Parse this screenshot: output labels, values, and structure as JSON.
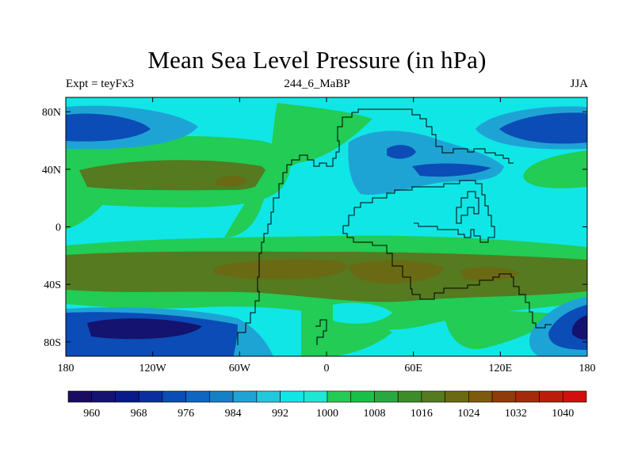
{
  "title": "Mean Sea Level Pressure (in hPa)",
  "subtitle_left": "Expt = teyFx3",
  "subtitle_center": "244_6_MaBP",
  "subtitle_right": "JJA",
  "axes": {
    "x_ticks": [
      {
        "value": -180,
        "label": "180"
      },
      {
        "value": -120,
        "label": "120W"
      },
      {
        "value": -60,
        "label": "60W"
      },
      {
        "value": 0,
        "label": "0"
      },
      {
        "value": 60,
        "label": "60E"
      },
      {
        "value": 120,
        "label": "120E"
      },
      {
        "value": 180,
        "label": "180"
      }
    ],
    "y_ticks": [
      {
        "value": 80,
        "label": "80N"
      },
      {
        "value": 40,
        "label": "40N"
      },
      {
        "value": 0,
        "label": "0"
      },
      {
        "value": -40,
        "label": "40S"
      },
      {
        "value": -80,
        "label": "80S"
      }
    ],
    "xlim": [
      -180,
      180
    ],
    "ylim": [
      -90,
      90
    ]
  },
  "colorbar": {
    "levels": [
      956,
      960,
      964,
      968,
      972,
      976,
      980,
      984,
      988,
      992,
      996,
      1000,
      1004,
      1008,
      1012,
      1016,
      1020,
      1024,
      1028,
      1032,
      1036,
      1040,
      1044
    ],
    "colors": [
      "#1a0c5e",
      "#14136f",
      "#0a1a88",
      "#0a2ea0",
      "#0b4cb6",
      "#0e66c0",
      "#1480c8",
      "#1ea4d4",
      "#22c8dc",
      "#10e6e6",
      "#1ee8d4",
      "#22cc55",
      "#18c048",
      "#2aa840",
      "#3c8c2a",
      "#557a20",
      "#6a6a14",
      "#7e5a0e",
      "#903c0a",
      "#a42a0c",
      "#bc1c0c",
      "#d40e0e"
    ],
    "labels": [
      "960",
      "968",
      "976",
      "984",
      "992",
      "1000",
      "1008",
      "1016",
      "1024",
      "1032",
      "1040"
    ]
  },
  "field_colors": {
    "deep_low": "#14136f",
    "low": "#0b4cb6",
    "mid_low": "#1ea4d4",
    "cyan": "#10e6e6",
    "green": "#22cc55",
    "olive": "#557a20",
    "brown": "#6a6a14"
  }
}
